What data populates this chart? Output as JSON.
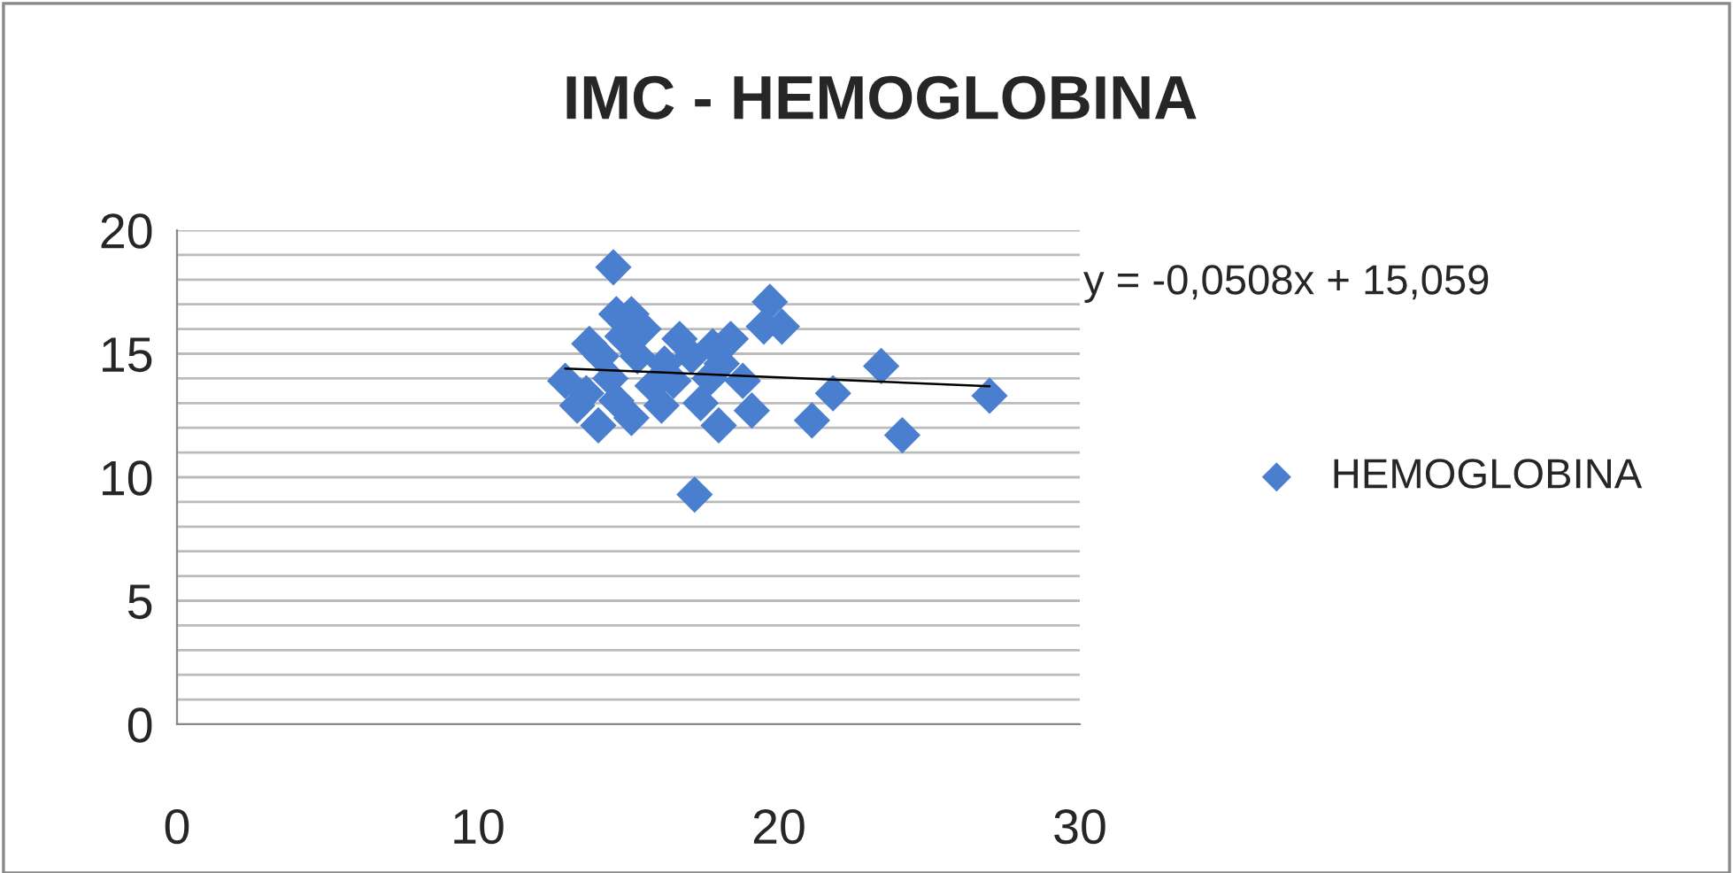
{
  "chart_data": {
    "type": "scatter",
    "title": "IMC - HEMOGLOBINA",
    "series": [
      {
        "name": "HEMOGLOBINA",
        "color": "#4a7fcf",
        "marker": "diamond",
        "x": [
          14.5,
          19.7,
          19.5,
          20.1,
          23.4,
          27.0,
          24.1,
          21.1,
          21.8,
          19.1,
          18.8,
          18.0,
          17.4,
          17.2,
          18.4,
          17.8,
          16.7,
          16.2,
          13.7,
          12.9,
          13.3,
          14.0,
          15.1,
          16.1,
          14.6,
          15.1,
          14.8,
          15.3,
          14.4,
          15.8,
          14.6,
          14.1,
          17.7,
          18.1,
          17.1,
          15.5,
          16.5,
          13.6
        ],
        "values": [
          18.5,
          17.1,
          16.1,
          16.1,
          14.5,
          13.3,
          11.7,
          12.3,
          13.4,
          12.7,
          13.9,
          12.1,
          13.0,
          9.3,
          15.6,
          15.3,
          15.6,
          14.6,
          15.4,
          13.9,
          12.9,
          12.1,
          12.4,
          12.9,
          16.6,
          16.6,
          15.7,
          14.9,
          14.0,
          13.7,
          13.1,
          14.9,
          14.0,
          14.6,
          14.9,
          16.0,
          13.9,
          13.4
        ]
      },
      {
        "type": "line",
        "color": "#000000",
        "marker": "none",
        "x": [
          12.9,
          27.0
        ],
        "values": [
          14.404,
          13.687
        ]
      }
    ],
    "annotations": [
      "y = -0,0508x + 15,059"
    ],
    "xlim": [
      0,
      30
    ],
    "xticks": [
      0,
      10,
      20,
      30
    ],
    "ylim": [
      0,
      20
    ],
    "yticks": [
      0,
      {
        "value": 1,
        "label": null
      },
      {
        "value": 2,
        "label": null
      },
      {
        "value": 3,
        "label": null
      },
      {
        "value": 4,
        "label": null
      },
      5,
      {
        "value": 6,
        "label": null
      },
      {
        "value": 7,
        "label": null
      },
      {
        "value": 8,
        "label": null
      },
      {
        "value": 9,
        "label": null
      },
      10,
      {
        "value": 11,
        "label": null
      },
      {
        "value": 12,
        "label": null
      },
      {
        "value": 13,
        "label": null
      },
      {
        "value": 14,
        "label": null
      },
      15,
      {
        "value": 16,
        "label": null
      },
      {
        "value": 17,
        "label": null
      },
      {
        "value": 18,
        "label": null
      },
      {
        "value": 19,
        "label": null
      },
      20
    ],
    "grid": "y",
    "legend": "right"
  }
}
